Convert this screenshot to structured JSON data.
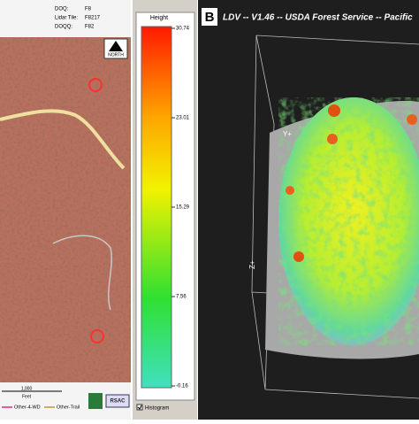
{
  "map_panel": {
    "header": [
      {
        "label": "DOQ:",
        "value": "F8"
      },
      {
        "label": "Lidar Tile:",
        "value": "F8217"
      },
      {
        "label": "DOQQ:",
        "value": "F82"
      }
    ],
    "north": "NORTH",
    "scale_label": "1,000",
    "scale_unit": "Feet",
    "legend": [
      "Other-4-WD",
      "Other-Trail"
    ],
    "logo": "RSAC"
  },
  "color_legend": {
    "title": "Height",
    "ticks": [
      30.74,
      23.01,
      15.29,
      7.56,
      -0.16
    ],
    "checkbox": "Histogram"
  },
  "viewer": {
    "panel_label": "B",
    "title": "LDV -- V1.46 -- USDA Forest Service -- Pacific",
    "axis_y": "Y+",
    "axis_z": "Z+"
  }
}
